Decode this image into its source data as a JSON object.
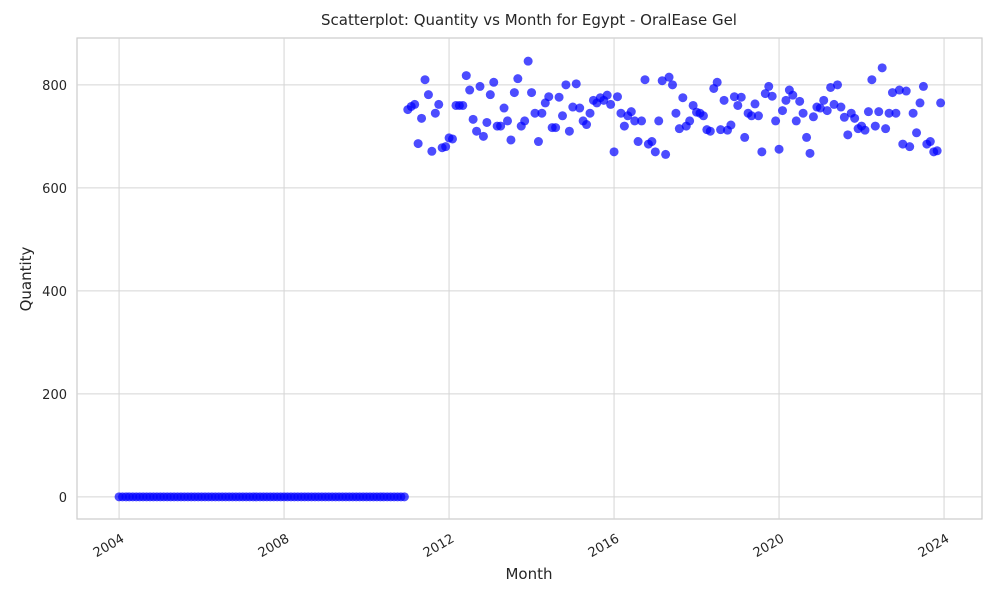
{
  "chart_data": {
    "type": "scatter",
    "title": "Scatterplot: Quantity vs Month for Egypt - OralEase Gel",
    "x_label": "Month",
    "y_label": "Quantity",
    "color": "#0000ff",
    "grid": true,
    "xlim": [
      2002.98,
      2024.92
    ],
    "ylim": [
      -43,
      891
    ],
    "xticks": [
      2004,
      2008,
      2012,
      2016,
      2020,
      2024
    ],
    "yticks": [
      0,
      200,
      400,
      600,
      800
    ],
    "x": [
      2004.0,
      2004.083,
      2004.167,
      2004.25,
      2004.333,
      2004.417,
      2004.5,
      2004.583,
      2004.667,
      2004.75,
      2004.833,
      2004.917,
      2005.0,
      2005.083,
      2005.167,
      2005.25,
      2005.333,
      2005.417,
      2005.5,
      2005.583,
      2005.667,
      2005.75,
      2005.833,
      2005.917,
      2006.0,
      2006.083,
      2006.167,
      2006.25,
      2006.333,
      2006.417,
      2006.5,
      2006.583,
      2006.667,
      2006.75,
      2006.833,
      2006.917,
      2007.0,
      2007.083,
      2007.167,
      2007.25,
      2007.333,
      2007.417,
      2007.5,
      2007.583,
      2007.667,
      2007.75,
      2007.833,
      2007.917,
      2008.0,
      2008.083,
      2008.167,
      2008.25,
      2008.333,
      2008.417,
      2008.5,
      2008.583,
      2008.667,
      2008.75,
      2008.833,
      2008.917,
      2009.0,
      2009.083,
      2009.167,
      2009.25,
      2009.333,
      2009.417,
      2009.5,
      2009.583,
      2009.667,
      2009.75,
      2009.833,
      2009.917,
      2010.0,
      2010.083,
      2010.167,
      2010.25,
      2010.333,
      2010.417,
      2010.5,
      2010.583,
      2010.667,
      2010.75,
      2010.833,
      2010.917,
      2011.0,
      2011.083,
      2011.167,
      2011.25,
      2011.333,
      2011.417,
      2011.5,
      2011.583,
      2011.667,
      2011.75,
      2011.833,
      2011.917,
      2012.0,
      2012.083,
      2012.167,
      2012.25,
      2012.333,
      2012.417,
      2012.5,
      2012.583,
      2012.667,
      2012.75,
      2012.833,
      2012.917,
      2013.0,
      2013.083,
      2013.167,
      2013.25,
      2013.333,
      2013.417,
      2013.5,
      2013.583,
      2013.667,
      2013.75,
      2013.833,
      2013.917,
      2014.0,
      2014.083,
      2014.167,
      2014.25,
      2014.333,
      2014.417,
      2014.5,
      2014.583,
      2014.667,
      2014.75,
      2014.833,
      2014.917,
      2015.0,
      2015.083,
      2015.167,
      2015.25,
      2015.333,
      2015.417,
      2015.5,
      2015.583,
      2015.667,
      2015.75,
      2015.833,
      2015.917,
      2016.0,
      2016.083,
      2016.167,
      2016.25,
      2016.333,
      2016.417,
      2016.5,
      2016.583,
      2016.667,
      2016.75,
      2016.833,
      2016.917,
      2017.0,
      2017.083,
      2017.167,
      2017.25,
      2017.333,
      2017.417,
      2017.5,
      2017.583,
      2017.667,
      2017.75,
      2017.833,
      2017.917,
      2018.0,
      2018.083,
      2018.167,
      2018.25,
      2018.333,
      2018.417,
      2018.5,
      2018.583,
      2018.667,
      2018.75,
      2018.833,
      2018.917,
      2019.0,
      2019.083,
      2019.167,
      2019.25,
      2019.333,
      2019.417,
      2019.5,
      2019.583,
      2019.667,
      2019.75,
      2019.833,
      2019.917,
      2020.0,
      2020.083,
      2020.167,
      2020.25,
      2020.333,
      2020.417,
      2020.5,
      2020.583,
      2020.667,
      2020.75,
      2020.833,
      2020.917,
      2021.0,
      2021.083,
      2021.167,
      2021.25,
      2021.333,
      2021.417,
      2021.5,
      2021.583,
      2021.667,
      2021.75,
      2021.833,
      2021.917,
      2022.0,
      2022.083,
      2022.167,
      2022.25,
      2022.333,
      2022.417,
      2022.5,
      2022.583,
      2022.667,
      2022.75,
      2022.833,
      2022.917,
      2023.0,
      2023.083,
      2023.167,
      2023.25,
      2023.333,
      2023.417,
      2023.5,
      2023.583,
      2023.667,
      2023.75,
      2023.833,
      2023.917
    ],
    "values": [
      0,
      0,
      0,
      0,
      0,
      0,
      0,
      0,
      0,
      0,
      0,
      0,
      0,
      0,
      0,
      0,
      0,
      0,
      0,
      0,
      0,
      0,
      0,
      0,
      0,
      0,
      0,
      0,
      0,
      0,
      0,
      0,
      0,
      0,
      0,
      0,
      0,
      0,
      0,
      0,
      0,
      0,
      0,
      0,
      0,
      0,
      0,
      0,
      0,
      0,
      0,
      0,
      0,
      0,
      0,
      0,
      0,
      0,
      0,
      0,
      0,
      0,
      0,
      0,
      0,
      0,
      0,
      0,
      0,
      0,
      0,
      0,
      0,
      0,
      0,
      0,
      0,
      0,
      0,
      0,
      0,
      0,
      0,
      0,
      752,
      758,
      762,
      686,
      735,
      810,
      781,
      671,
      745,
      762,
      678,
      680,
      697,
      695,
      760,
      760,
      760,
      818,
      790,
      733,
      710,
      797,
      700,
      727,
      781,
      805,
      720,
      720,
      755,
      730,
      693,
      785,
      812,
      720,
      730,
      846,
      785,
      745,
      690,
      745,
      765,
      777,
      717,
      717,
      776,
      740,
      800,
      710,
      757,
      802,
      755,
      730,
      723,
      745,
      770,
      765,
      775,
      770,
      780,
      762,
      670,
      777,
      745,
      720,
      740,
      748,
      730,
      690,
      730,
      810,
      685,
      690,
      670,
      730,
      808,
      665,
      815,
      800,
      745,
      715,
      775,
      720,
      730,
      760,
      747,
      745,
      740,
      713,
      710,
      793,
      805,
      713,
      770,
      712,
      722,
      777,
      760,
      776,
      698,
      745,
      740,
      763,
      740,
      670,
      783,
      797,
      778,
      730,
      675,
      750,
      770,
      790,
      780,
      730,
      768,
      745,
      698,
      667,
      738,
      757,
      755,
      770,
      750,
      795,
      762,
      800,
      757,
      737,
      703,
      745,
      735,
      715,
      720,
      712,
      748,
      810,
      720,
      748,
      833,
      715,
      745,
      785,
      745,
      790,
      685,
      788,
      680,
      745,
      707,
      765,
      797,
      685,
      690,
      670,
      672,
      765
    ]
  }
}
